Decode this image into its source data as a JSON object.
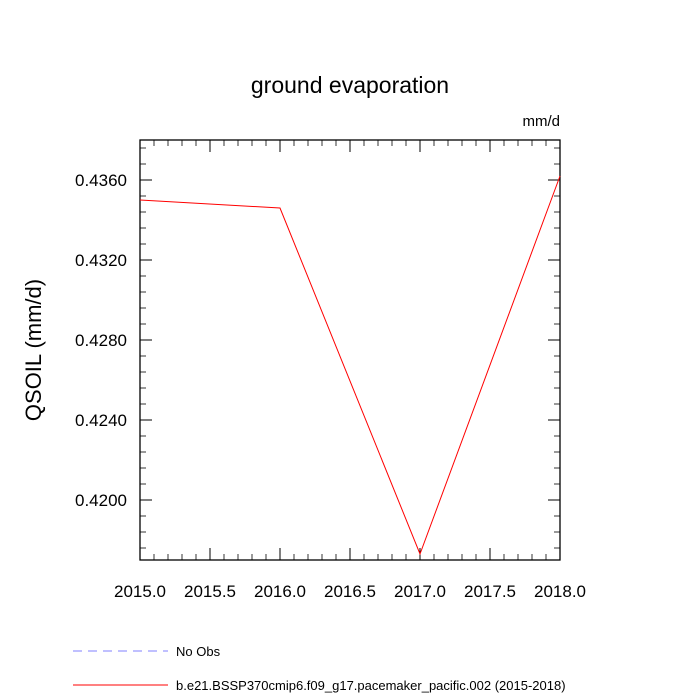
{
  "chart_data": {
    "type": "line",
    "title": "ground evaporation",
    "units_label": "mm/d",
    "xlabel": "",
    "ylabel": "QSOIL  (mm/d)",
    "xlim": [
      2015.0,
      2018.0
    ],
    "ylim": [
      0.417,
      0.438
    ],
    "x_ticks": [
      2015.0,
      2015.5,
      2016.0,
      2016.5,
      2017.0,
      2017.5,
      2018.0
    ],
    "x_tick_labels": [
      "2015.0",
      "2015.5",
      "2016.0",
      "2016.5",
      "2017.0",
      "2017.5",
      "2018.0"
    ],
    "y_ticks": [
      0.42,
      0.424,
      0.428,
      0.432,
      0.436
    ],
    "y_tick_labels": [
      "0.4200",
      "0.4240",
      "0.4280",
      "0.4320",
      "0.4360"
    ],
    "grid": false,
    "legend_placement": "bottom",
    "series": [
      {
        "name": "b.e21.BSSP370cmip6.f09_g17.pacemaker_pacific.002 (2015-2018)",
        "color": "#ff0000",
        "style": "solid",
        "x": [
          2015,
          2016,
          2017,
          2018
        ],
        "y": [
          0.435,
          0.4346,
          0.4173,
          0.4362
        ]
      }
    ],
    "legend": [
      {
        "label": "No Obs",
        "color": "#8080ff",
        "style": "dashed"
      },
      {
        "label": "b.e21.BSSP370cmip6.f09_g17.pacemaker_pacific.002 (2015-2018)",
        "color": "#ff0000",
        "style": "solid"
      }
    ]
  }
}
